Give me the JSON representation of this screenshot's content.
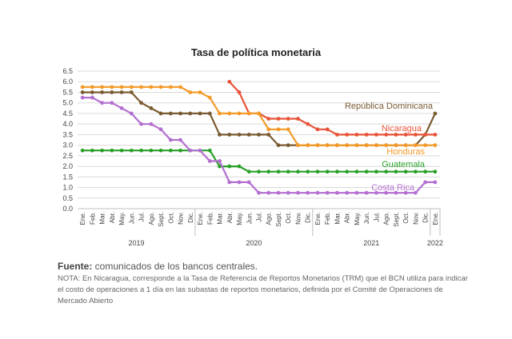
{
  "chart_data": {
    "type": "line",
    "title": "Tasa de política monetaria",
    "xlabel": "",
    "ylabel": "",
    "ylim": [
      0,
      6.5
    ],
    "yticks": [
      "0.0",
      "0.5",
      "1.0",
      "1.5",
      "2.0",
      "2.5",
      "3.0",
      "3.5",
      "4.0",
      "4.5",
      "5.0",
      "5.5",
      "6.0",
      "6.5"
    ],
    "grid": true,
    "legend": "inline labels at right",
    "categories": [
      "Ene.",
      "Feb.",
      "Mar.",
      "Abr.",
      "May.",
      "Jun.",
      "Jul.",
      "Ago.",
      "Sept.",
      "Oct.",
      "Nov.",
      "Dic.",
      "Ene.",
      "Feb.",
      "Mar.",
      "Abr.",
      "May.",
      "Jun.",
      "Jul.",
      "Ago.",
      "Sept.",
      "Oct.",
      "Nov.",
      "Dic.",
      "Ene.",
      "Feb.",
      "Mar.",
      "Abr.",
      "May.",
      "Jun.",
      "Jul.",
      "Ago.",
      "Sept.",
      "Oct.",
      "Nov.",
      "Dic.",
      "Ene."
    ],
    "years": [
      {
        "label": "2019",
        "start": 0,
        "end": 11
      },
      {
        "label": "2020",
        "start": 12,
        "end": 23
      },
      {
        "label": "2021",
        "start": 24,
        "end": 35
      },
      {
        "label": "2022",
        "start": 36,
        "end": 36
      }
    ],
    "series": [
      {
        "name": "República Dominicana",
        "color": "#7a5a32",
        "values": [
          5.5,
          5.5,
          5.5,
          5.5,
          5.5,
          5.5,
          5.0,
          4.75,
          4.5,
          4.5,
          4.5,
          4.5,
          4.5,
          4.5,
          3.5,
          3.5,
          3.5,
          3.5,
          3.5,
          3.5,
          3.0,
          3.0,
          3.0,
          3.0,
          3.0,
          3.0,
          3.0,
          3.0,
          3.0,
          3.0,
          3.0,
          3.0,
          3.0,
          3.0,
          3.0,
          3.5,
          4.5
        ]
      },
      {
        "name": "Nicaragua",
        "color": "#e8533a",
        "values": [
          null,
          null,
          null,
          null,
          null,
          null,
          null,
          null,
          null,
          null,
          null,
          null,
          null,
          null,
          null,
          6.0,
          5.5,
          4.5,
          4.5,
          4.25,
          4.25,
          4.25,
          4.25,
          4.0,
          3.75,
          3.75,
          3.5,
          3.5,
          3.5,
          3.5,
          3.5,
          3.5,
          3.5,
          3.5,
          3.5,
          3.5,
          3.5
        ]
      },
      {
        "name": "Honduras",
        "color": "#f39a28",
        "values": [
          5.75,
          5.75,
          5.75,
          5.75,
          5.75,
          5.75,
          5.75,
          5.75,
          5.75,
          5.75,
          5.75,
          5.5,
          5.5,
          5.25,
          4.5,
          4.5,
          4.5,
          4.5,
          4.5,
          3.75,
          3.75,
          3.75,
          3.0,
          3.0,
          3.0,
          3.0,
          3.0,
          3.0,
          3.0,
          3.0,
          3.0,
          3.0,
          3.0,
          3.0,
          3.0,
          3.0,
          3.0
        ]
      },
      {
        "name": "Guatemala",
        "color": "#2aa02a",
        "values": [
          2.75,
          2.75,
          2.75,
          2.75,
          2.75,
          2.75,
          2.75,
          2.75,
          2.75,
          2.75,
          2.75,
          2.75,
          2.75,
          2.75,
          2.0,
          2.0,
          2.0,
          1.75,
          1.75,
          1.75,
          1.75,
          1.75,
          1.75,
          1.75,
          1.75,
          1.75,
          1.75,
          1.75,
          1.75,
          1.75,
          1.75,
          1.75,
          1.75,
          1.75,
          1.75,
          1.75,
          1.75
        ]
      },
      {
        "name": "Costa Rica",
        "color": "#b36fd0",
        "values": [
          5.25,
          5.25,
          5.0,
          5.0,
          4.75,
          4.5,
          4.0,
          4.0,
          3.75,
          3.25,
          3.25,
          2.75,
          2.75,
          2.25,
          2.25,
          1.25,
          1.25,
          1.25,
          0.75,
          0.75,
          0.75,
          0.75,
          0.75,
          0.75,
          0.75,
          0.75,
          0.75,
          0.75,
          0.75,
          0.75,
          0.75,
          0.75,
          0.75,
          0.75,
          0.75,
          1.25,
          1.25
        ]
      }
    ]
  },
  "footer": {
    "source_label": "Fuente:",
    "source_text": " comunicados de los bancos centrales.",
    "note": "NOTA: En Nicaragua, corresponde a la Tasa de Referencia de Reportos Monetarios (TRM) que el BCN utiliza para indicar el costo de operaciones a 1 día en las subastas de reportos monetarios, definida por el Comité de Operaciones de Mercado Abierto"
  }
}
